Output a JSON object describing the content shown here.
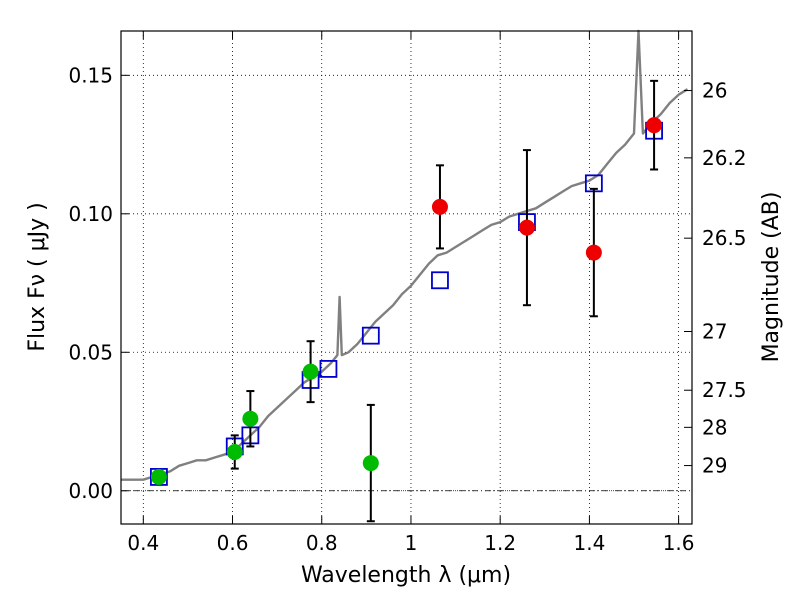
{
  "chart_data": {
    "type": "scatter",
    "xlabel": "Wavelength  λ (μm)",
    "ylabel": "Flux  Fν  ( μJy )",
    "y2label": "Magnitude (AB)",
    "xlim": [
      0.35,
      1.63
    ],
    "ylim": [
      -0.012,
      0.166
    ],
    "grid": true,
    "x_ticks": [
      0.4,
      0.6,
      0.8,
      1.0,
      1.2,
      1.4,
      1.6
    ],
    "x_tick_labels": [
      "0.4",
      "0.6",
      "0.8",
      "1",
      "1.2",
      "1.4",
      "1.6"
    ],
    "y_ticks": [
      0.0,
      0.05,
      0.1,
      0.15
    ],
    "y_tick_labels": [
      "0.00",
      "0.05",
      "0.10",
      "0.15"
    ],
    "y2_ticks": [
      {
        "label": "26",
        "flux": 0.1445
      },
      {
        "label": "26.2",
        "flux": 0.1202
      },
      {
        "label": "26.5",
        "flux": 0.0912
      },
      {
        "label": "27",
        "flux": 0.0575
      },
      {
        "label": "27.5",
        "flux": 0.0363
      },
      {
        "label": "28",
        "flux": 0.0229
      },
      {
        "label": "29",
        "flux": 0.0091
      }
    ],
    "series": [
      {
        "kind": "line",
        "color": "#808080",
        "x": [
          0.35,
          0.38,
          0.4,
          0.42,
          0.44,
          0.46,
          0.48,
          0.5,
          0.52,
          0.54,
          0.56,
          0.58,
          0.6,
          0.62,
          0.64,
          0.66,
          0.68,
          0.7,
          0.72,
          0.74,
          0.76,
          0.78,
          0.8,
          0.82,
          0.835,
          0.84,
          0.845,
          0.86,
          0.88,
          0.9,
          0.92,
          0.94,
          0.96,
          0.98,
          1.0,
          1.02,
          1.04,
          1.06,
          1.08,
          1.1,
          1.12,
          1.14,
          1.16,
          1.18,
          1.2,
          1.22,
          1.24,
          1.26,
          1.28,
          1.3,
          1.32,
          1.34,
          1.36,
          1.38,
          1.4,
          1.42,
          1.44,
          1.46,
          1.48,
          1.5,
          1.51,
          1.52,
          1.53,
          1.54,
          1.56,
          1.58,
          1.6,
          1.62
        ],
        "y": [
          0.004,
          0.004,
          0.004,
          0.005,
          0.006,
          0.007,
          0.009,
          0.01,
          0.011,
          0.011,
          0.012,
          0.013,
          0.014,
          0.017,
          0.02,
          0.023,
          0.027,
          0.03,
          0.033,
          0.036,
          0.039,
          0.041,
          0.043,
          0.046,
          0.049,
          0.07,
          0.049,
          0.05,
          0.053,
          0.057,
          0.061,
          0.064,
          0.067,
          0.071,
          0.074,
          0.078,
          0.082,
          0.085,
          0.086,
          0.088,
          0.09,
          0.092,
          0.094,
          0.096,
          0.097,
          0.099,
          0.1,
          0.101,
          0.102,
          0.104,
          0.106,
          0.108,
          0.11,
          0.111,
          0.112,
          0.114,
          0.118,
          0.122,
          0.125,
          0.129,
          0.166,
          0.129,
          0.131,
          0.133,
          0.136,
          0.14,
          0.143,
          0.145
        ]
      },
      {
        "kind": "squares",
        "color": "#0000cc",
        "x": [
          0.435,
          0.605,
          0.64,
          0.775,
          0.815,
          0.91,
          1.065,
          1.26,
          1.41,
          1.545
        ],
        "y": [
          0.005,
          0.016,
          0.02,
          0.04,
          0.044,
          0.056,
          0.076,
          0.097,
          0.111,
          0.13
        ]
      },
      {
        "kind": "points",
        "color": "#00bb00",
        "x": [
          0.435,
          0.605,
          0.64,
          0.775,
          0.91
        ],
        "y": [
          0.005,
          0.014,
          0.026,
          0.043,
          0.01
        ],
        "err": [
          null,
          0.006,
          0.01,
          0.011,
          0.021
        ]
      },
      {
        "kind": "points",
        "color": "#ee0000",
        "x": [
          1.065,
          1.26,
          1.41,
          1.545
        ],
        "y": [
          0.1025,
          0.095,
          0.086,
          0.132
        ],
        "err": [
          0.015,
          0.028,
          0.023,
          0.016
        ]
      }
    ]
  }
}
